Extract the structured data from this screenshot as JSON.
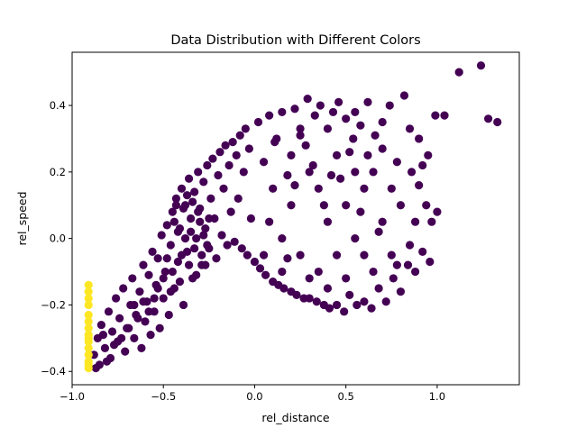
{
  "chart_data": {
    "type": "scatter",
    "title": "Data Distribution with Different Colors",
    "xlabel": "rel_distance",
    "ylabel": "rel_speed",
    "xlim": [
      -1.0,
      1.45
    ],
    "ylim": [
      -0.44,
      0.56
    ],
    "xticks": [
      -1.0,
      -0.5,
      0.0,
      0.5,
      1.0
    ],
    "xtick_labels": [
      "−1.0",
      "−0.5",
      "0.0",
      "0.5",
      "1.0"
    ],
    "yticks": [
      -0.4,
      -0.2,
      0.0,
      0.2,
      0.4
    ],
    "ytick_labels": [
      "−0.4",
      "−0.2",
      "0.0",
      "0.2",
      "0.4"
    ],
    "grid": false,
    "legend": "none",
    "colors": {
      "cluster_a": "#440154",
      "cluster_b": "#fde725"
    },
    "series": [
      {
        "color": "#440154",
        "points": [
          [
            -0.88,
            -0.35
          ],
          [
            -0.86,
            -0.3
          ],
          [
            -0.85,
            -0.38
          ],
          [
            -0.84,
            -0.26
          ],
          [
            -0.82,
            -0.33
          ],
          [
            -0.8,
            -0.22
          ],
          [
            -0.79,
            -0.36
          ],
          [
            -0.78,
            -0.28
          ],
          [
            -0.76,
            -0.18
          ],
          [
            -0.75,
            -0.31
          ],
          [
            -0.74,
            -0.24
          ],
          [
            -0.72,
            -0.15
          ],
          [
            -0.71,
            -0.34
          ],
          [
            -0.7,
            -0.27
          ],
          [
            -0.68,
            -0.2
          ],
          [
            -0.67,
            -0.12
          ],
          [
            -0.66,
            -0.3
          ],
          [
            -0.65,
            -0.23
          ],
          [
            -0.63,
            -0.16
          ],
          [
            -0.62,
            -0.33
          ],
          [
            -0.61,
            -0.08
          ],
          [
            -0.6,
            -0.25
          ],
          [
            -0.59,
            -0.19
          ],
          [
            -0.58,
            -0.11
          ],
          [
            -0.57,
            -0.29
          ],
          [
            -0.56,
            -0.04
          ],
          [
            -0.55,
            -0.22
          ],
          [
            -0.54,
            -0.14
          ],
          [
            -0.53,
            -0.06
          ],
          [
            -0.52,
            -0.27
          ],
          [
            -0.51,
            0.01
          ],
          [
            -0.5,
            -0.18
          ],
          [
            -0.49,
            -0.1
          ],
          [
            -0.48,
            0.04
          ],
          [
            -0.47,
            -0.23
          ],
          [
            -0.46,
            -0.02
          ],
          [
            -0.45,
            0.08
          ],
          [
            -0.44,
            -0.15
          ],
          [
            -0.43,
            0.12
          ],
          [
            -0.42,
            -0.07
          ],
          [
            -0.41,
            0.03
          ],
          [
            -0.4,
            0.15
          ],
          [
            -0.39,
            -0.2
          ],
          [
            -0.38,
            0.1
          ],
          [
            -0.37,
            -0.04
          ],
          [
            -0.36,
            0.18
          ],
          [
            -0.35,
            0.06
          ],
          [
            -0.34,
            -0.12
          ],
          [
            -0.33,
            0.14
          ],
          [
            -0.32,
            0.0
          ],
          [
            -0.31,
            0.2
          ],
          [
            -0.3,
            0.09
          ],
          [
            -0.29,
            -0.08
          ],
          [
            -0.28,
            0.17
          ],
          [
            -0.27,
            0.03
          ],
          [
            -0.26,
            0.22
          ],
          [
            -0.25,
            -0.03
          ],
          [
            -0.24,
            0.12
          ],
          [
            -0.23,
            0.24
          ],
          [
            -0.22,
            0.06
          ],
          [
            -0.21,
            -0.06
          ],
          [
            -0.2,
            0.19
          ],
          [
            -0.19,
            0.26
          ],
          [
            -0.18,
            0.01
          ],
          [
            -0.17,
            0.15
          ],
          [
            -0.16,
            0.28
          ],
          [
            -0.15,
            -0.02
          ],
          [
            -0.14,
            0.22
          ],
          [
            -0.13,
            0.08
          ],
          [
            -0.12,
            0.29
          ],
          [
            -0.11,
            -0.01
          ],
          [
            -0.1,
            0.25
          ],
          [
            -0.09,
            0.12
          ],
          [
            -0.08,
            0.31
          ],
          [
            -0.07,
            -0.03
          ],
          [
            -0.06,
            0.2
          ],
          [
            -0.05,
            0.33
          ],
          [
            -0.04,
            -0.05
          ],
          [
            -0.03,
            0.27
          ],
          [
            -0.02,
            0.06
          ],
          [
            0.0,
            -0.07
          ],
          [
            0.02,
            0.35
          ],
          [
            0.03,
            -0.09
          ],
          [
            0.05,
            0.23
          ],
          [
            0.06,
            -0.11
          ],
          [
            0.08,
            0.37
          ],
          [
            0.1,
            -0.13
          ],
          [
            0.11,
            0.29
          ],
          [
            0.13,
            -0.14
          ],
          [
            0.15,
            0.38
          ],
          [
            0.16,
            -0.15
          ],
          [
            0.18,
            0.19
          ],
          [
            0.2,
            -0.16
          ],
          [
            0.22,
            0.39
          ],
          [
            0.23,
            -0.17
          ],
          [
            0.25,
            0.31
          ],
          [
            0.27,
            -0.18
          ],
          [
            0.29,
            0.42
          ],
          [
            0.3,
            -0.18
          ],
          [
            0.32,
            0.22
          ],
          [
            0.34,
            -0.19
          ],
          [
            0.36,
            0.4
          ],
          [
            0.38,
            -0.2
          ],
          [
            0.4,
            0.33
          ],
          [
            0.41,
            -0.21
          ],
          [
            0.43,
            0.38
          ],
          [
            0.45,
            -0.2
          ],
          [
            0.47,
            0.18
          ],
          [
            0.49,
            -0.22
          ],
          [
            0.5,
            0.36
          ],
          [
            0.52,
            -0.17
          ],
          [
            0.54,
            0.3
          ],
          [
            0.56,
            -0.2
          ],
          [
            0.58,
            0.34
          ],
          [
            0.6,
            -0.19
          ],
          [
            0.62,
            0.25
          ],
          [
            0.64,
            -0.21
          ],
          [
            0.66,
            0.31
          ],
          [
            0.68,
            -0.15
          ],
          [
            0.7,
            0.27
          ],
          [
            0.72,
            -0.19
          ],
          [
            0.74,
            0.4
          ],
          [
            0.76,
            -0.12
          ],
          [
            0.78,
            0.23
          ],
          [
            0.8,
            -0.16
          ],
          [
            0.82,
            0.43
          ],
          [
            0.84,
            -0.08
          ],
          [
            0.86,
            0.2
          ],
          [
            0.88,
            -0.1
          ],
          [
            0.9,
            0.16
          ],
          [
            0.92,
            -0.04
          ],
          [
            0.94,
            0.1
          ],
          [
            0.96,
            -0.07
          ],
          [
            0.97,
            0.05
          ],
          [
            0.99,
            0.37
          ],
          [
            1.0,
            0.08
          ],
          [
            1.04,
            0.37
          ],
          [
            1.12,
            0.5
          ],
          [
            1.24,
            0.52
          ],
          [
            1.28,
            0.36
          ],
          [
            1.33,
            0.35
          ],
          [
            -0.35,
            0.02
          ],
          [
            -0.4,
            -0.05
          ],
          [
            -0.3,
            0.05
          ],
          [
            -0.45,
            -0.1
          ],
          [
            -0.38,
            0.0
          ],
          [
            -0.33,
            -0.03
          ],
          [
            -0.42,
            0.02
          ],
          [
            -0.28,
            0.01
          ],
          [
            -0.36,
            -0.08
          ],
          [
            -0.48,
            -0.06
          ],
          [
            -0.26,
            -0.02
          ],
          [
            -0.44,
            0.05
          ],
          [
            -0.31,
            0.08
          ],
          [
            -0.39,
            0.09
          ],
          [
            -0.34,
            0.11
          ],
          [
            -0.29,
            -0.05
          ],
          [
            -0.41,
            -0.13
          ],
          [
            -0.37,
            0.13
          ],
          [
            -0.32,
            -0.11
          ],
          [
            -0.46,
            -0.16
          ],
          [
            -0.25,
            0.06
          ],
          [
            -0.5,
            -0.12
          ],
          [
            -0.43,
            0.1
          ],
          [
            -0.27,
            -0.08
          ],
          [
            -0.53,
            -0.15
          ],
          [
            -0.55,
            -0.18
          ],
          [
            -0.58,
            -0.22
          ],
          [
            -0.61,
            -0.19
          ],
          [
            -0.64,
            -0.24
          ],
          [
            -0.66,
            -0.2
          ],
          [
            -0.69,
            -0.27
          ],
          [
            -0.73,
            -0.3
          ],
          [
            -0.77,
            -0.32
          ],
          [
            -0.81,
            -0.37
          ],
          [
            -0.83,
            -0.29
          ],
          [
            -0.87,
            -0.39
          ],
          [
            0.3,
            0.2
          ],
          [
            0.35,
            0.15
          ],
          [
            0.4,
            0.05
          ],
          [
            0.45,
            -0.05
          ],
          [
            0.5,
            0.1
          ],
          [
            0.55,
            0.0
          ],
          [
            0.6,
            0.15
          ],
          [
            0.65,
            -0.1
          ],
          [
            0.7,
            0.05
          ],
          [
            0.75,
            -0.05
          ],
          [
            0.8,
            0.1
          ],
          [
            0.85,
            -0.02
          ],
          [
            0.2,
            0.1
          ],
          [
            0.15,
            0.0
          ],
          [
            0.25,
            -0.05
          ],
          [
            0.1,
            0.15
          ],
          [
            0.05,
            -0.05
          ],
          [
            0.2,
            0.25
          ],
          [
            0.35,
            -0.1
          ],
          [
            0.55,
            0.2
          ],
          [
            0.45,
            0.25
          ],
          [
            0.65,
            0.2
          ],
          [
            0.75,
            0.15
          ],
          [
            0.6,
            -0.05
          ],
          [
            0.5,
            -0.12
          ],
          [
            0.4,
            -0.15
          ],
          [
            0.3,
            -0.12
          ],
          [
            0.15,
            -0.1
          ],
          [
            0.08,
            0.05
          ],
          [
            0.12,
            0.3
          ],
          [
            0.25,
            0.33
          ],
          [
            0.55,
            0.38
          ],
          [
            0.7,
            0.35
          ],
          [
            0.9,
            0.3
          ],
          [
            0.95,
            0.25
          ],
          [
            0.18,
            -0.06
          ],
          [
            0.38,
            0.1
          ],
          [
            0.58,
            0.08
          ],
          [
            0.68,
            0.02
          ],
          [
            0.78,
            -0.08
          ],
          [
            0.88,
            0.05
          ],
          [
            0.92,
            0.22
          ],
          [
            0.85,
            0.33
          ],
          [
            0.62,
            0.41
          ],
          [
            0.46,
            0.41
          ],
          [
            0.33,
            0.37
          ],
          [
            0.28,
            0.28
          ],
          [
            0.22,
            0.16
          ],
          [
            0.42,
            0.19
          ],
          [
            0.52,
            0.26
          ]
        ]
      },
      {
        "color": "#fde725",
        "points": [
          [
            -0.91,
            -0.39
          ],
          [
            -0.91,
            -0.37
          ],
          [
            -0.91,
            -0.35
          ],
          [
            -0.91,
            -0.33
          ],
          [
            -0.91,
            -0.31
          ],
          [
            -0.91,
            -0.29
          ],
          [
            -0.91,
            -0.27
          ],
          [
            -0.91,
            -0.25
          ],
          [
            -0.91,
            -0.23
          ],
          [
            -0.91,
            -0.2
          ],
          [
            -0.91,
            -0.18
          ],
          [
            -0.91,
            -0.16
          ],
          [
            -0.91,
            -0.14
          ],
          [
            -0.91,
            -0.38
          ],
          [
            -0.91,
            -0.3
          ]
        ]
      }
    ]
  }
}
